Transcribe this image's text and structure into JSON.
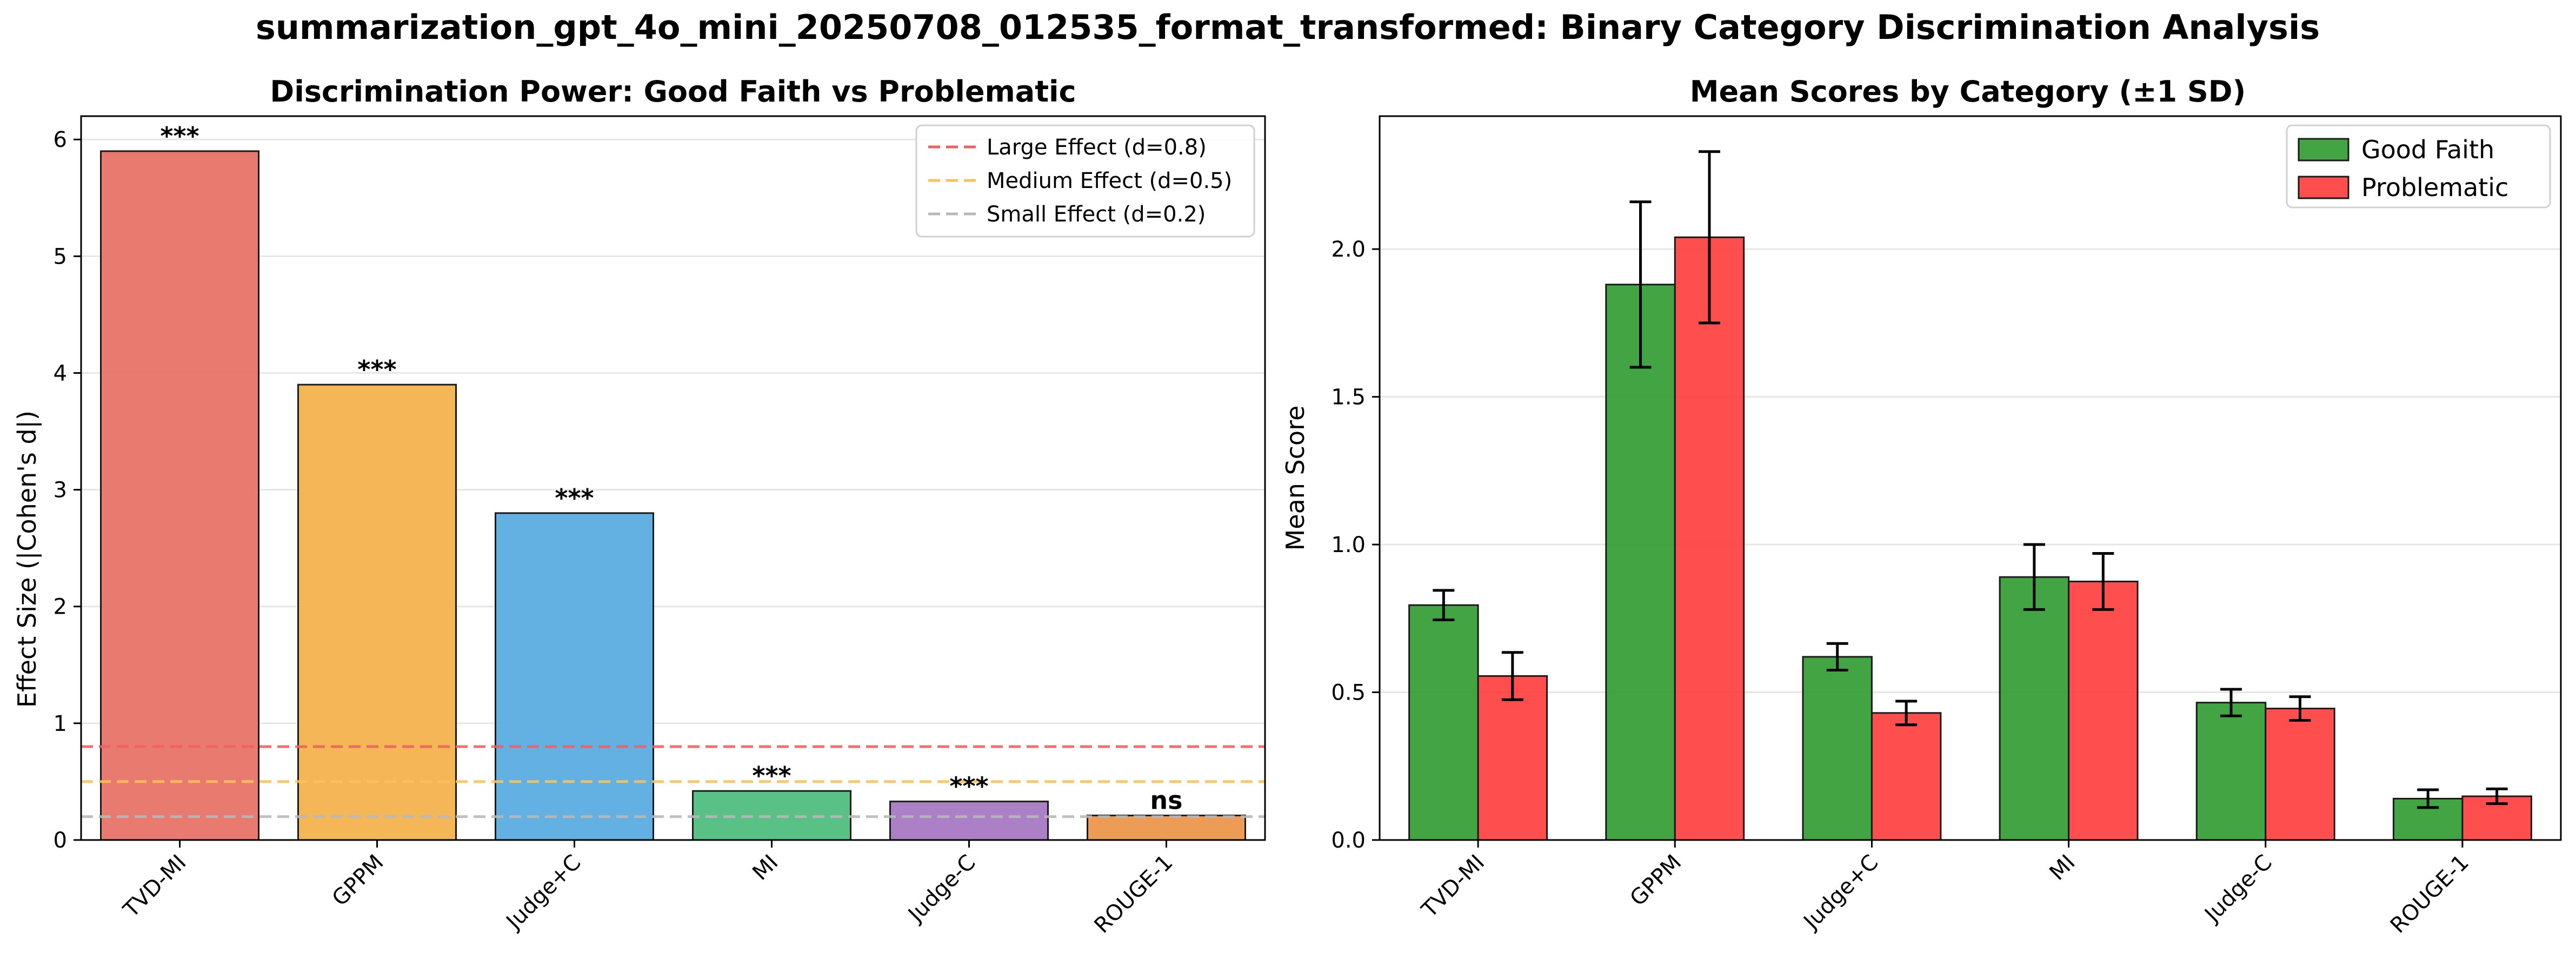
{
  "figure_title": "summarization_gpt_4o_mini_20250708_012535_format_transformed: Binary Category Discrimination Analysis",
  "colors": {
    "tvd_mi": "#e8756a",
    "gppm": "#f4b350",
    "judge_c_plus": "#5dade2",
    "mi": "#52be80",
    "judge_c": "#a97bc5",
    "rouge": "#eb984e",
    "good_faith": "#2e9a2e",
    "problematic": "#ff3b3b",
    "large_line": "#f06060",
    "medium_line": "#f8c25a",
    "small_line": "#b8b8b8"
  },
  "chart_data": [
    {
      "type": "bar",
      "title": "Discrimination Power: Good Faith vs Problematic",
      "xlabel": "",
      "ylabel": "Effect Size (|Cohen's d|)",
      "categories": [
        "TVD-MI",
        "GPPM",
        "Judge+C",
        "MI",
        "Judge-C",
        "ROUGE-1"
      ],
      "values": [
        5.9,
        3.9,
        2.8,
        0.42,
        0.33,
        0.21
      ],
      "significance": [
        "***",
        "***",
        "***",
        "***",
        "***",
        "ns"
      ],
      "bar_colors": [
        "tvd_mi",
        "gppm",
        "judge_c_plus",
        "mi",
        "judge_c",
        "rouge"
      ],
      "ylim": [
        0,
        6.2
      ],
      "yticks": [
        "0",
        "1",
        "2",
        "3",
        "4",
        "5",
        "6"
      ],
      "reference_lines": [
        {
          "name": "Large Effect (d=0.8)",
          "value": 0.8,
          "color": "large_line"
        },
        {
          "name": "Medium Effect (d=0.5)",
          "value": 0.5,
          "color": "medium_line"
        },
        {
          "name": "Small Effect (d=0.2)",
          "value": 0.2,
          "color": "small_line"
        }
      ],
      "legend_position": "top-right",
      "grid": "horizontal"
    },
    {
      "type": "bar",
      "title": "Mean Scores by Category (±1 SD)",
      "xlabel": "",
      "ylabel": "Mean Score",
      "categories": [
        "TVD-MI",
        "GPPM",
        "Judge+C",
        "MI",
        "Judge-C",
        "ROUGE-1"
      ],
      "series": [
        {
          "name": "Good Faith",
          "color": "good_faith",
          "values": [
            0.795,
            1.88,
            0.62,
            0.89,
            0.465,
            0.14
          ],
          "sd": [
            0.05,
            0.28,
            0.045,
            0.11,
            0.045,
            0.03
          ]
        },
        {
          "name": "Problematic",
          "color": "problematic",
          "values": [
            0.555,
            2.04,
            0.43,
            0.875,
            0.445,
            0.148
          ],
          "sd": [
            0.08,
            0.29,
            0.04,
            0.095,
            0.04,
            0.025
          ]
        }
      ],
      "ylim": [
        0,
        2.45
      ],
      "yticks": [
        "0.0",
        "0.5",
        "1.0",
        "1.5",
        "2.0"
      ],
      "legend_position": "top-right",
      "grid": "horizontal"
    }
  ]
}
